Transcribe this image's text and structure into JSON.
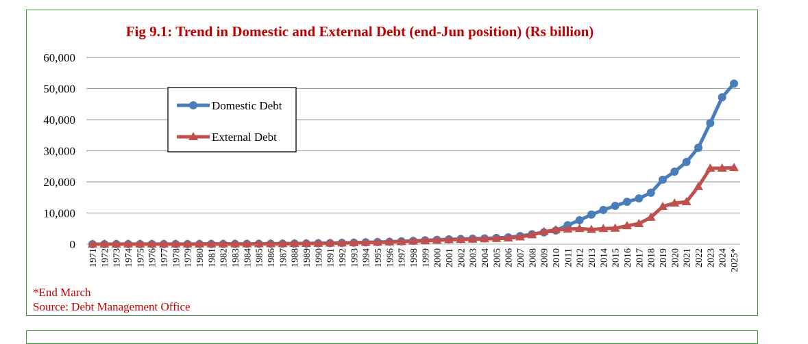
{
  "chart_data": {
    "type": "line",
    "title": "Fig 9.1: Trend in Domestic and External Debt (end-Jun position) (Rs billion)",
    "xlabel": "",
    "ylabel": "",
    "ylim": [
      0,
      60000
    ],
    "yticks": [
      "0",
      "10,000",
      "20,000",
      "30,000",
      "40,000",
      "50,000",
      "60,000"
    ],
    "grid": true,
    "legend_position": "upper-left",
    "x": [
      "1971",
      "1972",
      "1973",
      "1974",
      "1975",
      "1976",
      "1977",
      "1978",
      "1979",
      "1980",
      "1981",
      "1982",
      "1983",
      "1984",
      "1985",
      "1986",
      "1987",
      "1988",
      "1989",
      "1990",
      "1991",
      "1992",
      "1993",
      "1994",
      "1995",
      "1996",
      "1997",
      "1998",
      "1999",
      "2000",
      "2001",
      "2002",
      "2003",
      "2004",
      "2005",
      "2006",
      "2007",
      "2008",
      "2009",
      "2010",
      "2011",
      "2012",
      "2013",
      "2014",
      "2015",
      "2016",
      "2017",
      "2018",
      "2019",
      "2020",
      "2021",
      "2022",
      "2023",
      "2024",
      "2025*"
    ],
    "series": [
      {
        "name": "Domestic Debt",
        "color": "#4a7ebb",
        "marker": "circle",
        "values": [
          10,
          12,
          14,
          16,
          18,
          20,
          25,
          30,
          35,
          45,
          55,
          65,
          80,
          95,
          110,
          130,
          160,
          190,
          230,
          280,
          340,
          400,
          480,
          580,
          680,
          780,
          900,
          1050,
          1250,
          1400,
          1550,
          1650,
          1750,
          1850,
          2000,
          2200,
          2600,
          3200,
          3800,
          4400,
          6100,
          7700,
          9500,
          11000,
          12300,
          13600,
          14700,
          16500,
          20700,
          23300,
          26400,
          31000,
          38900,
          47200,
          51600
        ]
      },
      {
        "name": "External Debt",
        "color": "#c0504d",
        "marker": "triangle",
        "values": [
          8,
          10,
          12,
          14,
          16,
          18,
          22,
          26,
          30,
          38,
          45,
          55,
          70,
          85,
          100,
          120,
          150,
          180,
          220,
          260,
          310,
          370,
          440,
          520,
          600,
          700,
          800,
          950,
          1100,
          1250,
          1400,
          1500,
          1600,
          1700,
          1800,
          1950,
          2300,
          3000,
          4000,
          4600,
          4800,
          5000,
          4700,
          5000,
          5100,
          5900,
          6600,
          8600,
          12100,
          13200,
          13600,
          18500,
          24400,
          24400,
          24600
        ]
      }
    ]
  },
  "footnotes": {
    "note": "*End March",
    "source": "Source: Debt Management Office"
  }
}
